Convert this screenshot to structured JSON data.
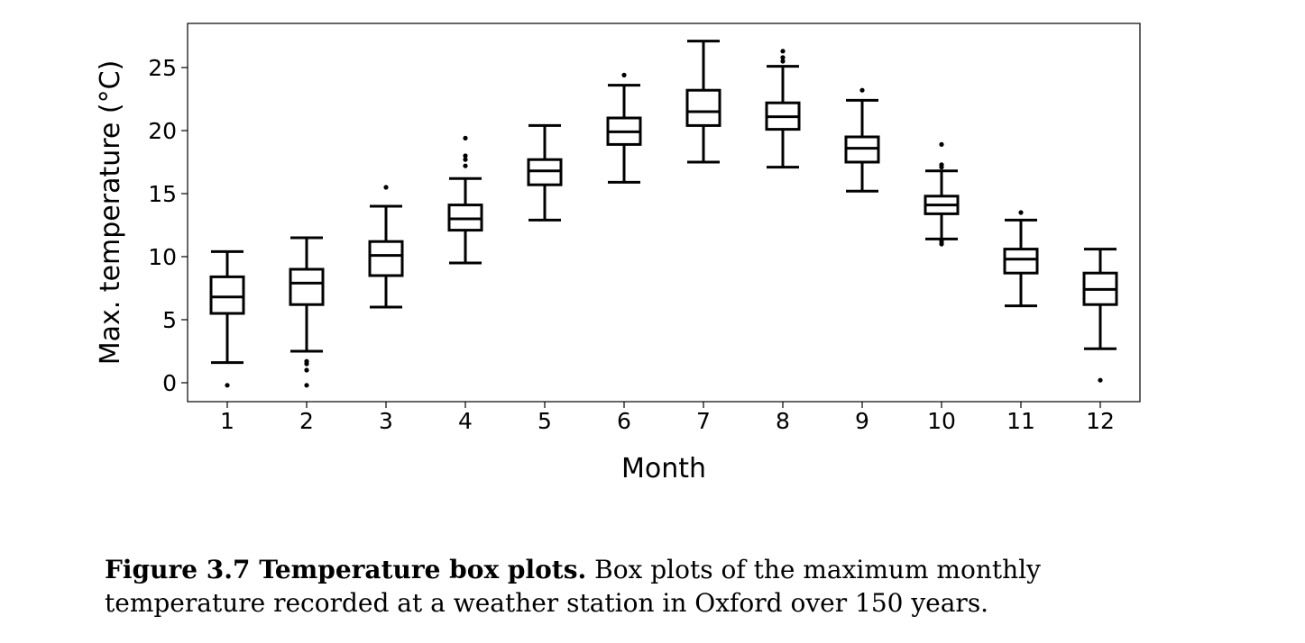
{
  "chart_data": {
    "type": "boxplot",
    "xlabel": "Month",
    "ylabel": "Max. temperature (°C)",
    "ylim": [
      -1.5,
      28.5
    ],
    "yticks": [
      0,
      5,
      10,
      15,
      20,
      25
    ],
    "categories": [
      "1",
      "2",
      "3",
      "4",
      "5",
      "6",
      "7",
      "8",
      "9",
      "10",
      "11",
      "12"
    ],
    "boxes": [
      {
        "q1": 5.5,
        "median": 6.8,
        "q3": 8.4,
        "whisker_low": 1.6,
        "whisker_high": 10.4,
        "outliers": [
          -0.2
        ]
      },
      {
        "q1": 6.2,
        "median": 7.9,
        "q3": 9.0,
        "whisker_low": 2.5,
        "whisker_high": 11.5,
        "outliers": [
          1.7,
          1.5,
          1.0,
          -0.2
        ]
      },
      {
        "q1": 8.5,
        "median": 10.1,
        "q3": 11.2,
        "whisker_low": 6.0,
        "whisker_high": 14.0,
        "outliers": [
          15.5
        ]
      },
      {
        "q1": 12.1,
        "median": 13.0,
        "q3": 14.1,
        "whisker_low": 9.5,
        "whisker_high": 16.2,
        "outliers": [
          17.2,
          17.7,
          18.0,
          19.4
        ]
      },
      {
        "q1": 15.7,
        "median": 16.8,
        "q3": 17.7,
        "whisker_low": 12.9,
        "whisker_high": 20.4,
        "outliers": []
      },
      {
        "q1": 18.9,
        "median": 19.9,
        "q3": 21.0,
        "whisker_low": 15.9,
        "whisker_high": 23.6,
        "outliers": [
          24.4
        ]
      },
      {
        "q1": 20.4,
        "median": 21.5,
        "q3": 23.2,
        "whisker_low": 17.5,
        "whisker_high": 27.1,
        "outliers": []
      },
      {
        "q1": 20.1,
        "median": 21.1,
        "q3": 22.2,
        "whisker_low": 17.1,
        "whisker_high": 25.1,
        "outliers": [
          25.5,
          25.8,
          26.3
        ]
      },
      {
        "q1": 17.5,
        "median": 18.6,
        "q3": 19.5,
        "whisker_low": 15.2,
        "whisker_high": 22.4,
        "outliers": [
          23.2
        ]
      },
      {
        "q1": 13.4,
        "median": 14.1,
        "q3": 14.8,
        "whisker_low": 11.4,
        "whisker_high": 16.8,
        "outliers": [
          17.1,
          17.3,
          18.9,
          11.2,
          11.0
        ]
      },
      {
        "q1": 8.7,
        "median": 9.8,
        "q3": 10.6,
        "whisker_low": 6.1,
        "whisker_high": 12.9,
        "outliers": [
          13.5
        ]
      },
      {
        "q1": 6.2,
        "median": 7.4,
        "q3": 8.7,
        "whisker_low": 2.7,
        "whisker_high": 10.6,
        "outliers": [
          0.2
        ]
      }
    ]
  },
  "caption": {
    "lead": "Figure 3.7 Temperature box plots.",
    "text": " Box plots of the maximum monthly temperature recorded at a weather station in Oxford over 150 years."
  }
}
